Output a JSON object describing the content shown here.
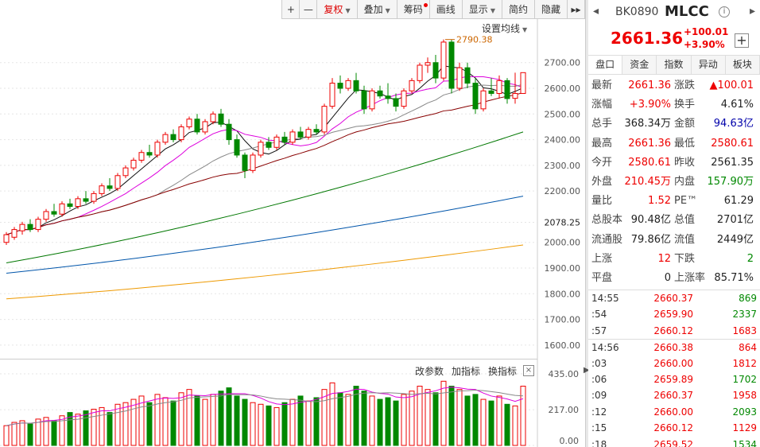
{
  "toolbar": {
    "plus": "+",
    "minus": "—",
    "fuquan": "复权",
    "diejia": "叠加",
    "chouma": "筹码",
    "huaxian": "画线",
    "xianshi": "显示",
    "jianyue": "简约",
    "yincang": "隐藏",
    "more": "▸▸"
  },
  "settings_ma": "设置均线",
  "indicator": {
    "change_params": "改参数",
    "add_indicator": "加指标",
    "switch_indicator": "换指标",
    "close": "×"
  },
  "price_axis": [
    "2700.00",
    "2600.00",
    "2500.00",
    "2400.00",
    "2300.00",
    "2200.00",
    "2078.25",
    "2000.00",
    "1900.00",
    "1800.00",
    "1700.00",
    "1600.00"
  ],
  "vol_axis": [
    "435.00",
    "217.00",
    "0.00"
  ],
  "high_label": "2790.38",
  "panel": {
    "nav_left": "◂",
    "nav_right": "▸",
    "code": "BK0890",
    "name": "MLCC",
    "info": "i",
    "price": "2661.36",
    "change": "+100.01",
    "change_pct": "+3.90%",
    "add": "+",
    "tabs": [
      "盘口",
      "资金",
      "指数",
      "异动",
      "板块"
    ],
    "quote": [
      [
        {
          "l": "最新",
          "v": "2661.36",
          "c": "red"
        },
        {
          "l": "涨跌",
          "v": "▲100.01",
          "c": "red"
        }
      ],
      [
        {
          "l": "涨幅",
          "v": "+3.90%",
          "c": "red"
        },
        {
          "l": "换手",
          "v": "4.61%",
          "c": "black"
        }
      ],
      [
        {
          "l": "总手",
          "v": "368.34万",
          "c": "black"
        },
        {
          "l": "金额",
          "v": "94.63亿",
          "c": "blue"
        }
      ],
      [
        {
          "l": "最高",
          "v": "2661.36",
          "c": "red"
        },
        {
          "l": "最低",
          "v": "2580.61",
          "c": "red"
        }
      ],
      [
        {
          "l": "今开",
          "v": "2580.61",
          "c": "red"
        },
        {
          "l": "昨收",
          "v": "2561.35",
          "c": "black"
        }
      ],
      [
        {
          "l": "外盘",
          "v": "210.45万",
          "c": "red"
        },
        {
          "l": "内盘",
          "v": "157.90万",
          "c": "green"
        }
      ],
      [
        {
          "l": "量比",
          "v": "1.52",
          "c": "red"
        },
        {
          "l": "PE™",
          "v": "61.29",
          "c": "black"
        }
      ],
      [
        {
          "l": "总股本",
          "v": "90.48亿",
          "c": "black"
        },
        {
          "l": "总值",
          "v": "2701亿",
          "c": "black"
        }
      ],
      [
        {
          "l": "流通股",
          "v": "79.86亿",
          "c": "black"
        },
        {
          "l": "流值",
          "v": "2449亿",
          "c": "black"
        }
      ],
      [
        {
          "l": "上涨",
          "v": "12",
          "c": "red"
        },
        {
          "l": "下跌",
          "v": "2",
          "c": "green"
        }
      ],
      [
        {
          "l": "平盘",
          "v": "0",
          "c": "black"
        },
        {
          "l": "上涨率",
          "v": "85.71%",
          "c": "black"
        }
      ]
    ],
    "ticks": [
      {
        "t": "14:55",
        "p": "2660.37",
        "v": "869",
        "c": "green",
        "g": false
      },
      {
        "t": ":54",
        "p": "2659.90",
        "v": "2337",
        "c": "green",
        "g": false
      },
      {
        "t": ":57",
        "p": "2660.12",
        "v": "1683",
        "c": "red",
        "g": false
      },
      {
        "t": "14:56",
        "p": "2660.38",
        "v": "864",
        "c": "red",
        "g": true
      },
      {
        "t": ":03",
        "p": "2660.00",
        "v": "1812",
        "c": "red",
        "g": false
      },
      {
        "t": ":06",
        "p": "2659.89",
        "v": "1702",
        "c": "green",
        "g": false
      },
      {
        "t": ":09",
        "p": "2660.37",
        "v": "1958",
        "c": "red",
        "g": false
      },
      {
        "t": ":12",
        "p": "2660.00",
        "v": "2093",
        "c": "green",
        "g": false
      },
      {
        "t": ":15",
        "p": "2660.12",
        "v": "1129",
        "c": "red",
        "g": false
      },
      {
        "t": ":18",
        "p": "2659.52",
        "v": "1534",
        "c": "green",
        "g": false
      }
    ]
  },
  "chart_data": {
    "type": "candlestick",
    "price_ylim": [
      1550,
      2820
    ],
    "vol_ylim": [
      0,
      435
    ],
    "candles": [
      [
        2000,
        2040,
        1990,
        2030
      ],
      [
        2020,
        2060,
        2010,
        2050
      ],
      [
        2045,
        2080,
        2030,
        2070
      ],
      [
        2070,
        2090,
        2040,
        2050
      ],
      [
        2050,
        2100,
        2040,
        2090
      ],
      [
        2090,
        2130,
        2080,
        2120
      ],
      [
        2120,
        2150,
        2100,
        2110
      ],
      [
        2110,
        2160,
        2100,
        2150
      ],
      [
        2150,
        2170,
        2130,
        2140
      ],
      [
        2140,
        2180,
        2130,
        2170
      ],
      [
        2170,
        2200,
        2150,
        2160
      ],
      [
        2160,
        2200,
        2150,
        2190
      ],
      [
        2190,
        2230,
        2180,
        2220
      ],
      [
        2220,
        2250,
        2200,
        2210
      ],
      [
        2210,
        2270,
        2200,
        2260
      ],
      [
        2260,
        2300,
        2250,
        2290
      ],
      [
        2290,
        2330,
        2280,
        2320
      ],
      [
        2320,
        2360,
        2310,
        2350
      ],
      [
        2350,
        2380,
        2330,
        2340
      ],
      [
        2340,
        2400,
        2330,
        2390
      ],
      [
        2390,
        2430,
        2380,
        2420
      ],
      [
        2420,
        2440,
        2390,
        2400
      ],
      [
        2400,
        2460,
        2390,
        2450
      ],
      [
        2450,
        2490,
        2440,
        2480
      ],
      [
        2480,
        2500,
        2420,
        2430
      ],
      [
        2430,
        2480,
        2420,
        2470
      ],
      [
        2470,
        2510,
        2460,
        2500
      ],
      [
        2500,
        2520,
        2450,
        2460
      ],
      [
        2460,
        2480,
        2380,
        2400
      ],
      [
        2400,
        2420,
        2330,
        2340
      ],
      [
        2340,
        2350,
        2250,
        2280
      ],
      [
        2280,
        2350,
        2270,
        2340
      ],
      [
        2340,
        2400,
        2330,
        2390
      ],
      [
        2390,
        2410,
        2360,
        2370
      ],
      [
        2370,
        2420,
        2360,
        2410
      ],
      [
        2410,
        2430,
        2380,
        2390
      ],
      [
        2390,
        2440,
        2380,
        2430
      ],
      [
        2430,
        2450,
        2400,
        2410
      ],
      [
        2410,
        2450,
        2400,
        2440
      ],
      [
        2440,
        2460,
        2420,
        2430
      ],
      [
        2430,
        2540,
        2420,
        2530
      ],
      [
        2530,
        2640,
        2520,
        2620
      ],
      [
        2620,
        2650,
        2580,
        2600
      ],
      [
        2600,
        2640,
        2590,
        2630
      ],
      [
        2630,
        2660,
        2580,
        2590
      ],
      [
        2590,
        2610,
        2500,
        2520
      ],
      [
        2520,
        2600,
        2510,
        2590
      ],
      [
        2590,
        2610,
        2560,
        2570
      ],
      [
        2570,
        2620,
        2540,
        2560
      ],
      [
        2560,
        2580,
        2510,
        2530
      ],
      [
        2530,
        2600,
        2520,
        2590
      ],
      [
        2590,
        2640,
        2580,
        2630
      ],
      [
        2630,
        2700,
        2620,
        2690
      ],
      [
        2690,
        2720,
        2660,
        2700
      ],
      [
        2700,
        2730,
        2620,
        2640
      ],
      [
        2640,
        2790,
        2630,
        2780
      ],
      [
        2780,
        2790,
        2580,
        2600
      ],
      [
        2600,
        2700,
        2590,
        2680
      ],
      [
        2680,
        2700,
        2600,
        2620
      ],
      [
        2620,
        2640,
        2500,
        2520
      ],
      [
        2520,
        2600,
        2510,
        2590
      ],
      [
        2590,
        2640,
        2570,
        2580
      ],
      [
        2580,
        2650,
        2560,
        2630
      ],
      [
        2630,
        2640,
        2540,
        2560
      ],
      [
        2561,
        2661,
        2540,
        2580
      ],
      [
        2580,
        2661,
        2580,
        2661
      ]
    ],
    "volume": [
      120,
      140,
      150,
      130,
      160,
      170,
      150,
      180,
      200,
      190,
      210,
      220,
      230,
      200,
      250,
      260,
      280,
      300,
      260,
      310,
      290,
      270,
      320,
      340,
      300,
      280,
      310,
      330,
      350,
      300,
      280,
      260,
      250,
      240,
      230,
      260,
      280,
      300,
      270,
      290,
      340,
      380,
      320,
      310,
      360,
      330,
      300,
      280,
      290,
      270,
      310,
      330,
      360,
      340,
      320,
      390,
      360,
      340,
      300,
      310,
      280,
      270,
      300,
      250,
      240,
      360
    ],
    "ma": {
      "ma5": [
        "#111111",
        1.0
      ],
      "ma10": [
        "#d0d",
        1.0
      ],
      "ma20": [
        "#888888",
        1.0
      ],
      "ma30": [
        "#800",
        1.0
      ],
      "ma60": [
        "#070",
        1.0
      ],
      "ma120": [
        "#05a",
        1.0
      ],
      "ma250": [
        "#e90",
        1.0
      ]
    },
    "long_ma": {
      "ma60": [
        1920,
        2430
      ],
      "ma120": [
        1880,
        2180
      ],
      "ma250": [
        1780,
        1990
      ]
    }
  }
}
